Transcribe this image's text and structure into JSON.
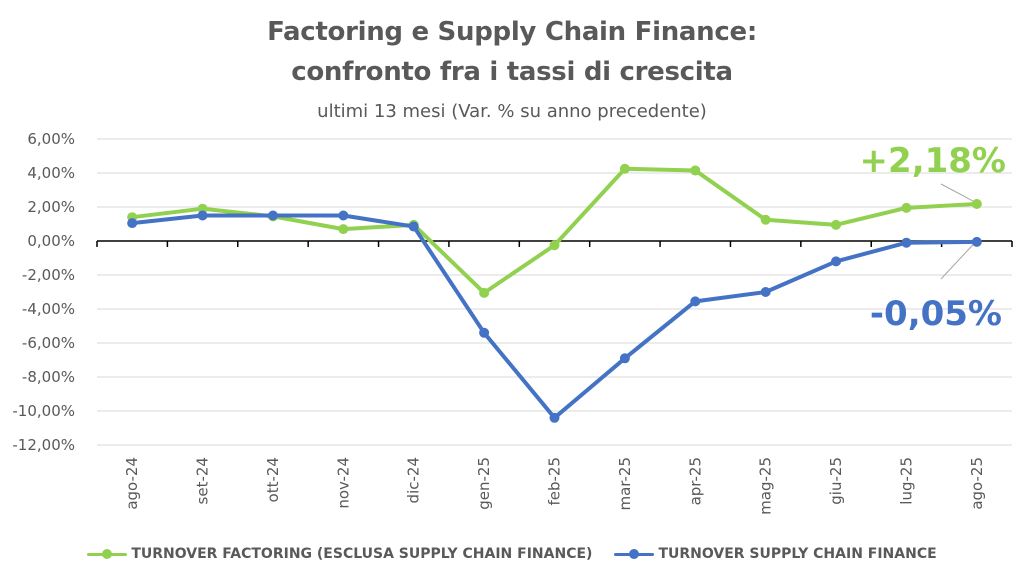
{
  "chart_data": {
    "type": "line",
    "title": "Factoring e Supply Chain Finance: confronto fra i tassi di crescita",
    "title_lines": [
      "Factoring e Supply Chain Finance:",
      "confronto fra i tassi di crescita"
    ],
    "subtitle": "ultimi 13 mesi (Var. % su anno precedente)",
    "xlabel": "",
    "ylabel": "",
    "ylim": [
      -12,
      6
    ],
    "yticks": [
      6,
      4,
      2,
      0,
      -2,
      -4,
      -6,
      -8,
      -10,
      -12
    ],
    "ytick_labels": [
      "6,00%",
      "4,00%",
      "2,00%",
      "0,00%",
      "-2,00%",
      "-4,00%",
      "-6,00%",
      "-8,00%",
      "-10,00%",
      "-12,00%"
    ],
    "grid": true,
    "legend_position": "bottom",
    "categories": [
      "ago-24",
      "set-24",
      "ott-24",
      "nov-24",
      "dic-24",
      "gen-25",
      "feb-25",
      "mar-25",
      "apr-25",
      "mag-25",
      "giu-25",
      "lug-25",
      "ago-25"
    ],
    "series": [
      {
        "name": "TURNOVER FACTORING (ESCLUSA SUPPLY CHAIN FINANCE)",
        "color": "#92D050",
        "values": [
          1.4,
          1.9,
          1.45,
          0.7,
          0.95,
          -3.05,
          -0.25,
          4.25,
          4.15,
          1.25,
          0.95,
          1.95,
          2.18
        ]
      },
      {
        "name": "TURNOVER SUPPLY CHAIN FINANCE",
        "color": "#4472C4",
        "values": [
          1.05,
          1.5,
          1.5,
          1.5,
          0.85,
          -5.4,
          -10.4,
          -6.9,
          -3.55,
          -3.0,
          -1.2,
          -0.1,
          -0.05
        ]
      }
    ],
    "annotations": [
      {
        "text": "+2,18%",
        "series": 0,
        "category": "ago-25",
        "color": "#92D050"
      },
      {
        "text": "-0,05%",
        "series": 1,
        "category": "ago-25",
        "color": "#4472C4"
      }
    ]
  }
}
